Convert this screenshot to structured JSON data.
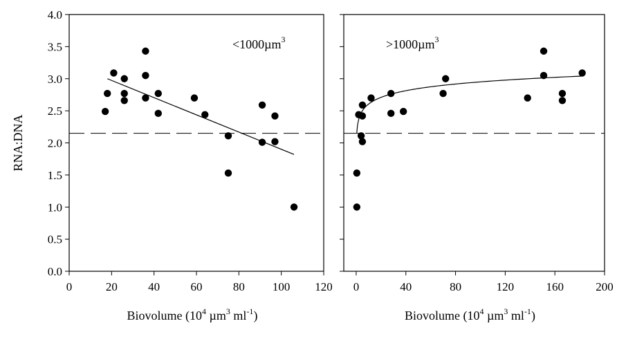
{
  "chart_data": [
    {
      "type": "scatter",
      "panel_label": "<1000µm",
      "panel_label_sup": "3",
      "ylabel": "RNA:DNA",
      "xlabel": {
        "pre": "Biovolume (10",
        "sup1": "4",
        "mid1": " µm",
        "sup2": "3",
        "mid2": " ml",
        "sup3": "-1",
        "post": ")"
      },
      "xlim": [
        0,
        120
      ],
      "ylim": [
        0,
        4.0
      ],
      "xticks": [
        "0",
        "20",
        "40",
        "60",
        "80",
        "100",
        "120"
      ],
      "yticks": [
        "0.0",
        "0.5",
        "1.0",
        "1.5",
        "2.0",
        "2.5",
        "3.0",
        "3.5",
        "4.0"
      ],
      "points": [
        [
          17,
          2.49
        ],
        [
          18,
          2.77
        ],
        [
          21,
          3.09
        ],
        [
          26,
          3.0
        ],
        [
          26,
          2.77
        ],
        [
          26,
          2.66
        ],
        [
          36,
          3.43
        ],
        [
          36,
          3.05
        ],
        [
          36,
          2.7
        ],
        [
          42,
          2.77
        ],
        [
          42,
          2.46
        ],
        [
          59,
          2.7
        ],
        [
          64,
          2.44
        ],
        [
          75,
          2.11
        ],
        [
          75,
          1.53
        ],
        [
          91,
          2.59
        ],
        [
          91,
          2.01
        ],
        [
          97,
          2.42
        ],
        [
          97,
          2.02
        ],
        [
          106,
          1.0
        ]
      ],
      "fit": {
        "type": "linear",
        "from": [
          18,
          3.0
        ],
        "to": [
          106,
          1.82
        ]
      },
      "reference_line": {
        "y": 2.15,
        "style": "dashed"
      },
      "grid": false,
      "show_y_ticklabels": true
    },
    {
      "type": "scatter",
      "panel_label": ">1000µm",
      "panel_label_sup": "3",
      "xlabel": {
        "pre": "Biovolume (10",
        "sup1": "4",
        "mid1": " µm",
        "sup2": "3",
        "mid2": " ml",
        "sup3": "-1",
        "post": ")"
      },
      "xlim": [
        -10,
        200
      ],
      "ylim": [
        0,
        4.0
      ],
      "xticks": [
        "0",
        "40",
        "80",
        "120",
        "160",
        "200"
      ],
      "xtick_values": [
        0,
        40,
        80,
        120,
        160,
        200
      ],
      "points": [
        [
          0.5,
          1.53
        ],
        [
          0.5,
          1.0
        ],
        [
          2,
          2.44
        ],
        [
          4,
          2.11
        ],
        [
          5,
          2.42
        ],
        [
          5,
          2.59
        ],
        [
          5,
          2.02
        ],
        [
          12,
          2.7
        ],
        [
          28,
          2.77
        ],
        [
          28,
          2.46
        ],
        [
          38,
          2.49
        ],
        [
          70,
          2.77
        ],
        [
          72,
          3.0
        ],
        [
          138,
          2.7
        ],
        [
          151,
          3.43
        ],
        [
          151,
          3.05
        ],
        [
          166,
          2.77
        ],
        [
          166,
          2.66
        ],
        [
          182,
          3.09
        ]
      ],
      "fit": {
        "type": "logarithmic",
        "a": 2.26,
        "b": 0.15,
        "xmin": 0.5,
        "xmax": 182
      },
      "reference_line": {
        "y": 2.15,
        "style": "dashed"
      },
      "grid": false,
      "show_y_ticklabels": false
    }
  ]
}
